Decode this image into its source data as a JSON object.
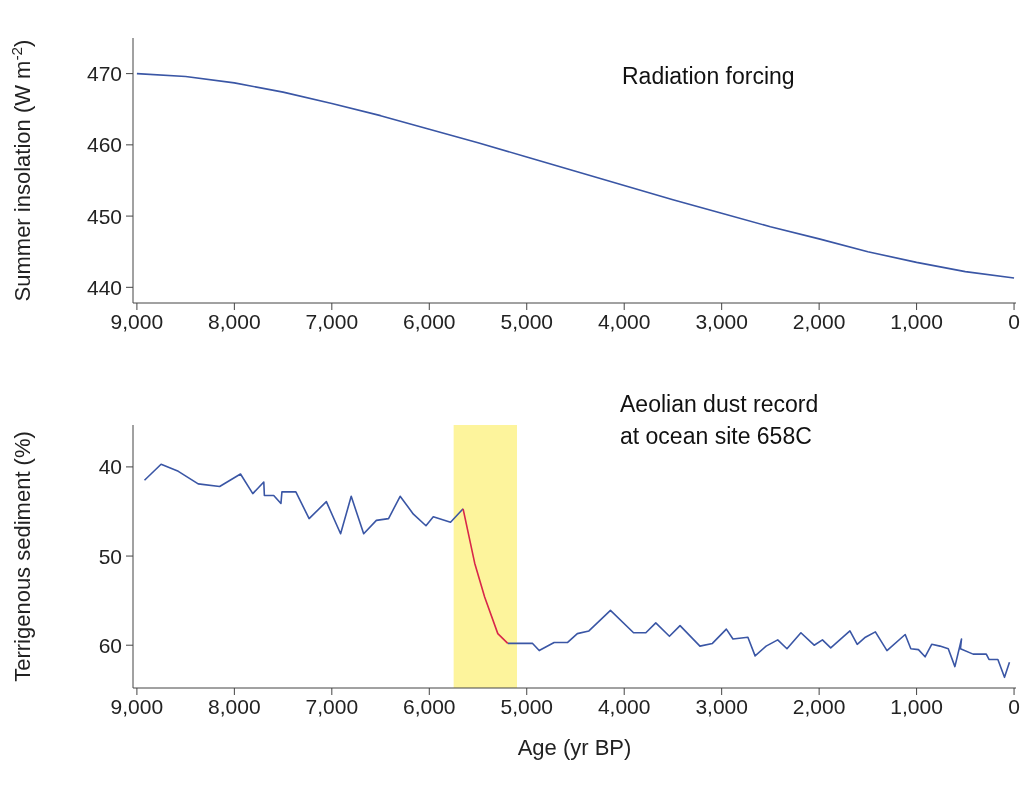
{
  "chart_data": [
    {
      "type": "line",
      "ylabel": "Summer insolation (W m$^{-2}$)",
      "annotations": [
        "Radiation forcing"
      ],
      "x": [
        9000,
        8500,
        8000,
        7500,
        7000,
        6500,
        6000,
        5500,
        5000,
        4500,
        4000,
        3500,
        3000,
        2500,
        2000,
        1500,
        1000,
        500,
        0
      ],
      "series": [
        {
          "color": "#3a56a5",
          "values": [
            470,
            469.6,
            468.7,
            467.4,
            465.8,
            464.1,
            462.2,
            460.3,
            458.3,
            456.3,
            454.3,
            452.3,
            450.4,
            448.5,
            446.8,
            445.0,
            443.5,
            442.2,
            441.3
          ]
        }
      ],
      "xlim": [
        9040,
        -20
      ],
      "ylim": [
        437.8,
        475
      ],
      "xticks": [
        {
          "value": 9000,
          "label": "9,000"
        },
        {
          "value": 8000,
          "label": "8,000"
        },
        {
          "value": 7000,
          "label": "7,000"
        },
        {
          "value": 6000,
          "label": "6,000"
        },
        {
          "value": 5000,
          "label": "5,000"
        },
        {
          "value": 4000,
          "label": "4,000"
        },
        {
          "value": 3000,
          "label": "3,000"
        },
        {
          "value": 2000,
          "label": "2,000"
        },
        {
          "value": 1000,
          "label": "1,000"
        },
        0
      ],
      "yticks": [
        440,
        450,
        460,
        470
      ],
      "grid": false,
      "legend": false,
      "marker": "none",
      "line_style": "solid"
    },
    {
      "type": "line",
      "ylabel": "Terrigenous sediment (%)",
      "xlabel": "Age (yr BP)",
      "annotations": [
        "Aeolian dust record\nat ocean site 658C"
      ],
      "x": [
        8922,
        8752,
        8575,
        8371,
        8151,
        7937,
        7811,
        7698,
        7692,
        7596,
        7522,
        7512,
        7369,
        7233,
        7056,
        6910,
        6801,
        6673,
        6543,
        6418,
        6299,
        6163,
        6034,
        5959,
        5782,
        5653,
        5534,
        5432,
        5297,
        5195,
        4940,
        4872,
        4719,
        4583,
        4481,
        4362,
        4141,
        3904,
        3778,
        3676,
        3536,
        3427,
        3223,
        3095,
        2952,
        2884,
        2731,
        2657,
        2544,
        2425,
        2330,
        2187,
        2051,
        1966,
        1881,
        1684,
        1609,
        1525,
        1423,
        1304,
        1117,
        1059,
        981,
        913,
        845,
        760,
        675,
        607,
        539,
        550,
        420,
        285,
        257,
        166,
        98,
        47
      ],
      "series": [
        {
          "color": "#3a56a5",
          "values": [
            41.5,
            39.7,
            40.5,
            41.9,
            42.2,
            40.8,
            43.0,
            41.7,
            43.2,
            43.2,
            44.1,
            42.8,
            42.8,
            45.8,
            43.9,
            47.5,
            43.3,
            47.5,
            46.0,
            45.8,
            43.3,
            45.3,
            46.6,
            45.6,
            46.2,
            44.7,
            null,
            null,
            null,
            59.8,
            59.8,
            60.6,
            59.7,
            59.7,
            58.7,
            58.4,
            56.1,
            58.6,
            58.6,
            57.5,
            59.0,
            57.8,
            60.1,
            59.8,
            58.2,
            59.3,
            59.1,
            61.2,
            60.1,
            59.4,
            60.4,
            58.6,
            60.0,
            59.4,
            60.3,
            58.4,
            59.9,
            59.1,
            58.5,
            60.6,
            58.8,
            60.4,
            60.5,
            61.3,
            59.9,
            60.1,
            60.4,
            62.4,
            59.3,
            60.4,
            61.0,
            61.0,
            61.6,
            61.6,
            63.6,
            61.9
          ]
        },
        {
          "color": "#d8264a",
          "values": [
            null,
            null,
            null,
            null,
            null,
            null,
            null,
            null,
            null,
            null,
            null,
            null,
            null,
            null,
            null,
            null,
            null,
            null,
            null,
            null,
            null,
            null,
            null,
            null,
            null,
            44.7,
            50.8,
            54.6,
            58.7,
            59.8,
            null,
            null,
            null,
            null,
            null,
            null,
            null,
            null,
            null,
            null,
            null,
            null,
            null,
            null,
            null,
            null,
            null,
            null,
            null,
            null,
            null,
            null,
            null,
            null,
            null,
            null,
            null,
            null,
            null,
            null,
            null,
            null,
            null,
            null,
            null,
            null,
            null,
            null,
            null,
            null,
            null,
            null,
            null,
            null,
            null,
            null
          ]
        }
      ],
      "bands": [
        {
          "axis": "x",
          "from": 5750,
          "to": 5100,
          "color": "#fdf49c"
        }
      ],
      "xlim": [
        9040,
        -20
      ],
      "ylim": [
        64.8,
        35.3
      ],
      "xticks": [
        {
          "value": 9000,
          "label": "9,000"
        },
        {
          "value": 8000,
          "label": "8,000"
        },
        {
          "value": 7000,
          "label": "7,000"
        },
        {
          "value": 6000,
          "label": "6,000"
        },
        {
          "value": 5000,
          "label": "5,000"
        },
        {
          "value": 4000,
          "label": "4,000"
        },
        {
          "value": 3000,
          "label": "3,000"
        },
        {
          "value": 2000,
          "label": "2,000"
        },
        {
          "value": 1000,
          "label": "1,000"
        },
        0
      ],
      "yticks": [
        40,
        50,
        60
      ],
      "grid": false,
      "legend": false,
      "marker": "none",
      "line_style": "solid"
    }
  ]
}
